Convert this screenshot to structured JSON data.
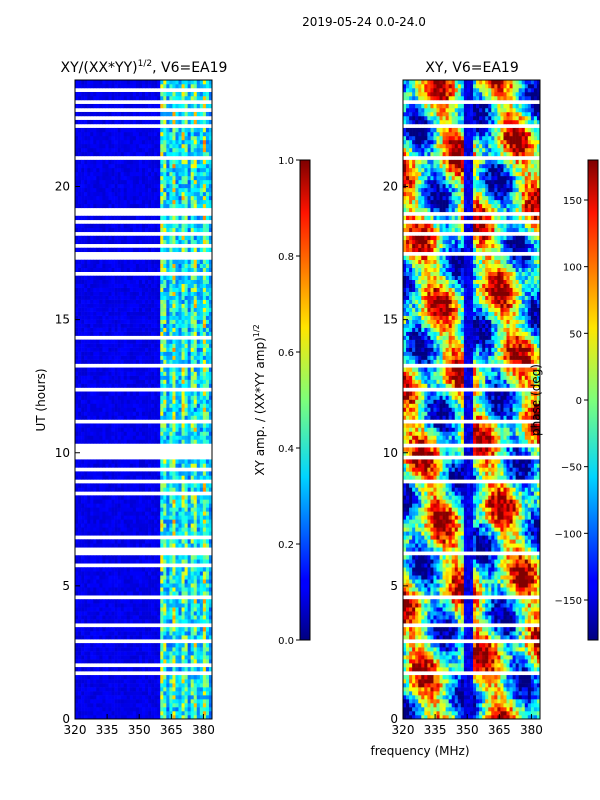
{
  "figure": {
    "suptitle": "2019-05-24 0.0-24.0",
    "shared_xlabel": "frequency (MHz)"
  },
  "chart_data": [
    {
      "type": "heatmap",
      "title_main": "XY/(XX*YY)",
      "title_sup": "1/2",
      "title_tail": ", V6=EA19",
      "ylabel": "UT (hours)",
      "xlim": [
        320,
        384
      ],
      "ylim": [
        0,
        24
      ],
      "xticks": [
        320,
        335,
        350,
        365,
        380
      ],
      "yticks": [
        0,
        5,
        10,
        15,
        20
      ],
      "colorbar": {
        "label_main": "XY amp. / (XX*YY amp)",
        "label_sup": "1/2",
        "range": [
          0.0,
          1.0
        ],
        "ticks": [
          "0.0",
          "0.2",
          "0.4",
          "0.6",
          "0.8",
          "1.0"
        ],
        "tick_values": [
          0.0,
          0.2,
          0.4,
          0.6,
          0.8,
          1.0
        ],
        "colormap": "jet"
      },
      "flagged_rows_ut": [
        0.6,
        1.7,
        2.0,
        2.9,
        3.3,
        3.5,
        4.6,
        5.4,
        5.8,
        6.2,
        6.4,
        6.8,
        6.9,
        7.05,
        7.2,
        8.1,
        8.5,
        8.9,
        9.0,
        9.4,
        9.8,
        10.0,
        10.1,
        10.3,
        11.2,
        12.4,
        12.9,
        13.3,
        14.3,
        14.4,
        15.0,
        15.3,
        15.6,
        16.5,
        16.7,
        17.1,
        17.3,
        17.5,
        17.8,
        18.2,
        18.7,
        18.9,
        19.0,
        19.1,
        20.4,
        21.1,
        21.6,
        22.3,
        22.6,
        22.9,
        23.2,
        23.4,
        23.6
      ]
    },
    {
      "type": "heatmap",
      "title_main": "XY, V6=EA19",
      "xlim": [
        320,
        384
      ],
      "ylim": [
        0,
        24
      ],
      "xticks": [
        320,
        335,
        350,
        365,
        380
      ],
      "yticks": [
        0,
        5,
        10,
        15,
        20
      ],
      "colorbar": {
        "label_main": "phase (deg)",
        "range": [
          -180,
          180
        ],
        "ticks": [
          "150",
          "100",
          "50",
          "0",
          "−50",
          "−100",
          "−150"
        ],
        "tick_values": [
          150,
          100,
          50,
          0,
          -50,
          -100,
          -150
        ],
        "colormap": "jet"
      },
      "flagged_rows_ut": [
        0.6,
        1.7,
        2.9,
        3.5,
        4.6,
        5.4,
        6.2,
        6.9,
        7.05,
        7.2,
        8.1,
        8.9,
        9.0,
        9.8,
        10.3,
        11.2,
        12.4,
        13.3,
        15.0,
        15.3,
        15.6,
        16.5,
        17.1,
        17.5,
        18.2,
        18.7,
        19.0,
        21.1,
        22.3,
        23.2
      ]
    }
  ]
}
